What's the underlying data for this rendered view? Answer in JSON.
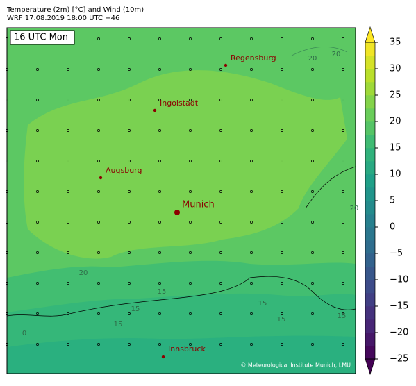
{
  "header": {
    "title": "Temperature (2m) [°C] and Wind (10m)",
    "subtitle": "WRF 17.08.2019 18:00 UTC +46"
  },
  "map": {
    "time_label": "16 UTC Mon",
    "cities": [
      {
        "name": "Regensburg"
      },
      {
        "name": "Ingolstadt"
      },
      {
        "name": "Augsburg"
      },
      {
        "name": "Munich"
      },
      {
        "name": "Innsbruck"
      }
    ],
    "contour_labels": [
      "20",
      "20",
      "20",
      "20",
      "15",
      "15",
      "15",
      "15",
      "15",
      "15",
      "0"
    ],
    "credit": "© Meteorological Institute Munich, LMU"
  },
  "colorbar": {
    "colormap": "viridis",
    "clim": [
      -25,
      35
    ],
    "level_step": 2.5,
    "extend": "both",
    "ticks": [
      35,
      30,
      25,
      20,
      15,
      10,
      5,
      0,
      {
        "value": -5,
        "label": "−5"
      },
      {
        "value": -10,
        "label": "−10"
      },
      {
        "value": -15,
        "label": "−15"
      },
      {
        "value": -20,
        "label": "−20"
      },
      {
        "value": -25,
        "label": "−25"
      }
    ]
  }
}
